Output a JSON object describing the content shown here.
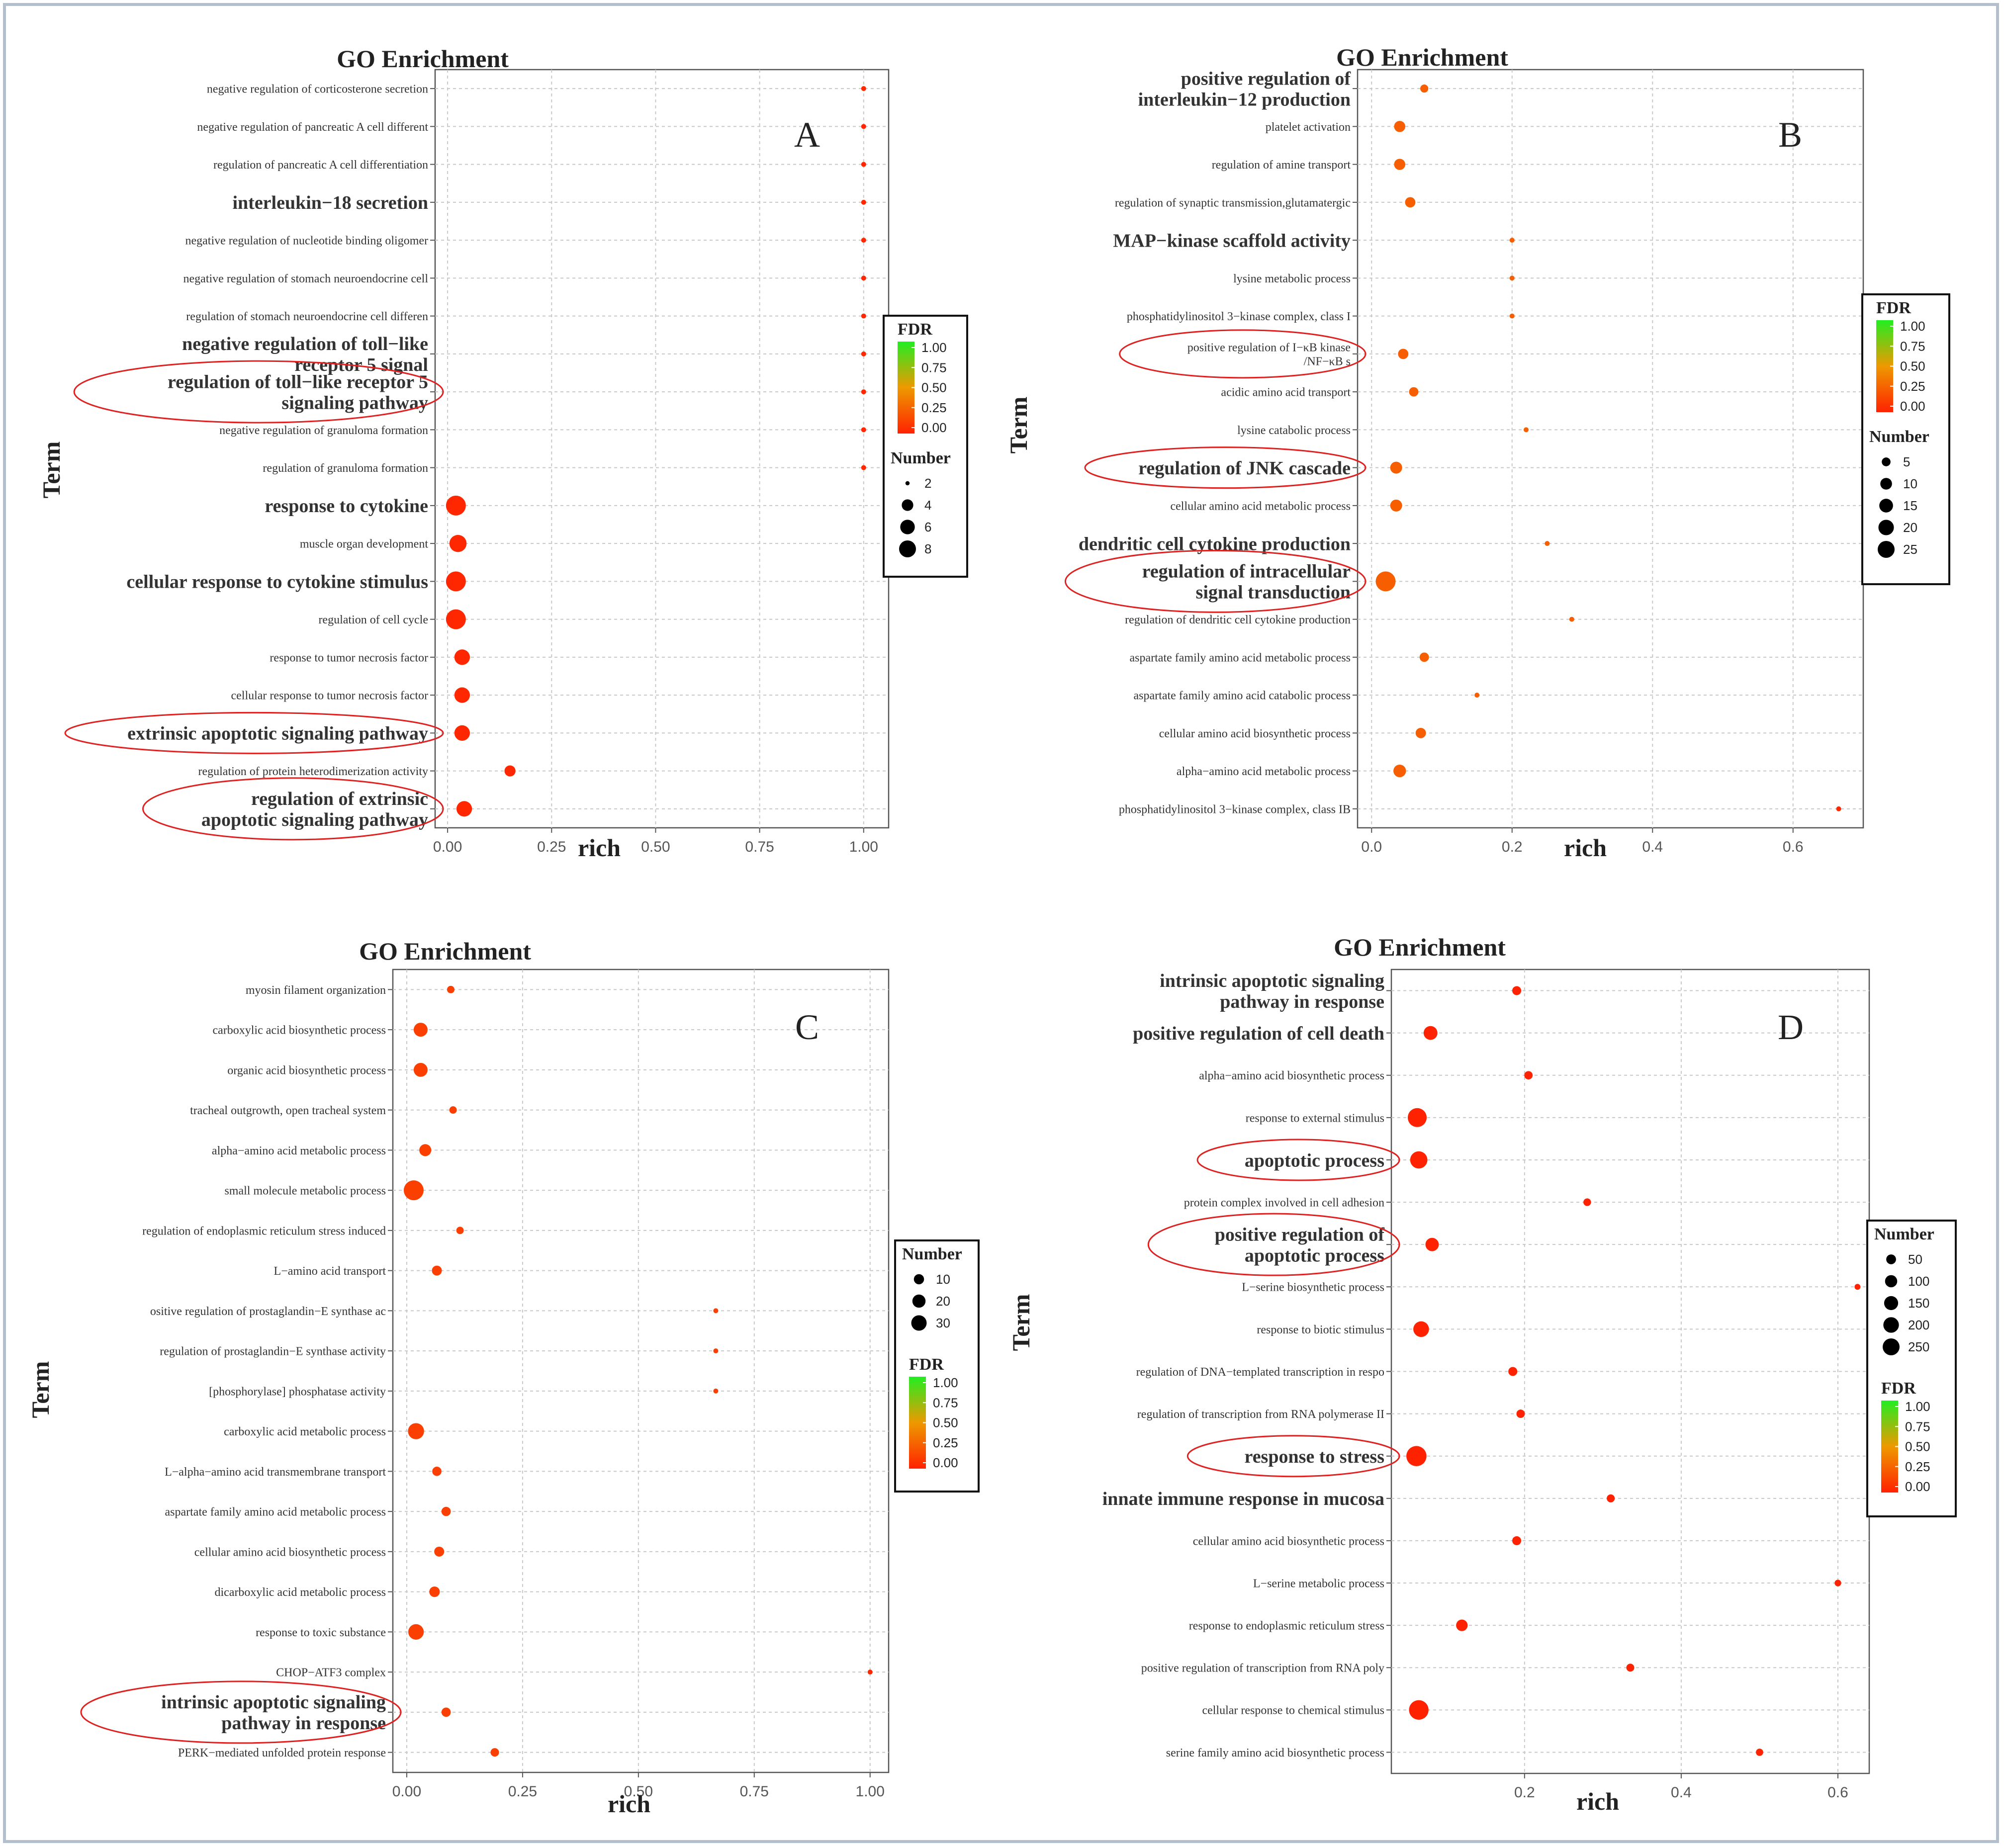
{
  "colors": {
    "low": "#ff2200",
    "mid": "#ee9900",
    "high": "#22ee22",
    "highlight": "#dd2222"
  },
  "chart_data": [
    {
      "id": "A",
      "type": "scatter",
      "title": "GO Enrichment",
      "panel_label": "A",
      "xlabel": "rich",
      "ylabel": "Term",
      "xlim": [
        -0.03,
        1.06
      ],
      "xticks": [
        0,
        0.25,
        0.5,
        0.75,
        1.0
      ],
      "xtick_labels": [
        "0.00",
        "0.25",
        "0.50",
        "0.75",
        "1.00"
      ],
      "grid": true,
      "legend_order": [
        "fdr",
        "size"
      ],
      "legend_fdr": {
        "title": "FDR",
        "labels": [
          "1.00",
          "0.75",
          "0.50",
          "0.25",
          "0.00"
        ]
      },
      "legend_size": {
        "title": "Number",
        "values": [
          2,
          4,
          6,
          8
        ]
      },
      "size_range": [
        2,
        8
      ],
      "terms": [
        {
          "label": [
            "negative regulation of corticosterone secretion"
          ],
          "rich": 1.0,
          "number": 1,
          "fdr": 0.02
        },
        {
          "label": [
            "negative regulation of pancreatic A cell different"
          ],
          "rich": 1.0,
          "number": 1,
          "fdr": 0.02
        },
        {
          "label": [
            "regulation of pancreatic A cell differentiation"
          ],
          "rich": 1.0,
          "number": 1,
          "fdr": 0.02
        },
        {
          "label": [
            "interleukin−18 secretion"
          ],
          "big": true,
          "rich": 1.0,
          "number": 1,
          "fdr": 0.02
        },
        {
          "label": [
            "negative regulation of nucleotide binding oligomer"
          ],
          "rich": 1.0,
          "number": 1,
          "fdr": 0.02
        },
        {
          "label": [
            "negative regulation of stomach neuroendocrine cell"
          ],
          "rich": 1.0,
          "number": 1,
          "fdr": 0.02
        },
        {
          "label": [
            "regulation of stomach neuroendocrine cell differen"
          ],
          "rich": 1.0,
          "number": 1,
          "fdr": 0.02
        },
        {
          "label": [
            "negative regulation of toll−like",
            "receptor 5 signal"
          ],
          "big": true,
          "rich": 1.0,
          "number": 1,
          "fdr": 0.02
        },
        {
          "label": [
            "regulation of toll−like receptor 5",
            "signaling pathway"
          ],
          "big": true,
          "highlight": true,
          "rich": 1.0,
          "number": 1,
          "fdr": 0.02
        },
        {
          "label": [
            "negative regulation of granuloma formation"
          ],
          "rich": 1.0,
          "number": 1,
          "fdr": 0.02
        },
        {
          "label": [
            "regulation of granuloma formation"
          ],
          "rich": 1.0,
          "number": 1,
          "fdr": 0.02
        },
        {
          "label": [
            "response to cytokine"
          ],
          "big": true,
          "rich": 0.02,
          "number": 8,
          "fdr": 0.02
        },
        {
          "label": [
            "muscle organ development"
          ],
          "rich": 0.025,
          "number": 6,
          "fdr": 0.02
        },
        {
          "label": [
            "cellular response to cytokine stimulus"
          ],
          "big": true,
          "rich": 0.02,
          "number": 8,
          "fdr": 0.02
        },
        {
          "label": [
            "regulation of cell cycle"
          ],
          "rich": 0.02,
          "number": 8,
          "fdr": 0.02
        },
        {
          "label": [
            "response to tumor necrosis factor"
          ],
          "rich": 0.035,
          "number": 5,
          "fdr": 0.02
        },
        {
          "label": [
            "cellular response to tumor necrosis factor"
          ],
          "rich": 0.035,
          "number": 5,
          "fdr": 0.02
        },
        {
          "label": [
            "extrinsic apoptotic signaling pathway"
          ],
          "big": true,
          "highlight": true,
          "rich": 0.035,
          "number": 5,
          "fdr": 0.02
        },
        {
          "label": [
            "regulation of protein heterodimerization activity"
          ],
          "rich": 0.15,
          "number": 3,
          "fdr": 0.02
        },
        {
          "label": [
            "regulation of extrinsic",
            "apoptotic signaling pathway"
          ],
          "big": true,
          "highlight": true,
          "rich": 0.04,
          "number": 5,
          "fdr": 0.02
        }
      ]
    },
    {
      "id": "B",
      "type": "scatter",
      "title": "GO Enrichment",
      "panel_label": "B",
      "xlabel": "rich",
      "ylabel": "Term",
      "xlim": [
        -0.02,
        0.7
      ],
      "xticks": [
        0,
        0.2,
        0.4,
        0.6
      ],
      "xtick_labels": [
        "0.0",
        "0.2",
        "0.4",
        "0.6"
      ],
      "grid": true,
      "legend_order": [
        "fdr",
        "size"
      ],
      "legend_fdr": {
        "title": "FDR",
        "labels": [
          "1.00",
          "0.75",
          "0.50",
          "0.25",
          "0.00"
        ]
      },
      "legend_size": {
        "title": "Number",
        "values": [
          5,
          10,
          15,
          20,
          25
        ]
      },
      "size_range": [
        2,
        25
      ],
      "terms": [
        {
          "label": [
            "positive regulation of",
            "interleukin−12  production"
          ],
          "big": true,
          "rich": 0.075,
          "number": 3,
          "fdr": 0.25
        },
        {
          "label": [
            "platelet activation"
          ],
          "rich": 0.04,
          "number": 6,
          "fdr": 0.25
        },
        {
          "label": [
            "regulation of amine transport"
          ],
          "rich": 0.04,
          "number": 6,
          "fdr": 0.25
        },
        {
          "label": [
            "regulation of synaptic transmission,glutamatergic"
          ],
          "rich": 0.055,
          "number": 5,
          "fdr": 0.25
        },
        {
          "label": [
            "MAP−kinase scaffold activity"
          ],
          "big": true,
          "rich": 0.2,
          "number": 1,
          "fdr": 0.25
        },
        {
          "label": [
            "lysine metabolic process"
          ],
          "rich": 0.2,
          "number": 1,
          "fdr": 0.25
        },
        {
          "label": [
            "phosphatidylinositol 3−kinase complex, class I"
          ],
          "rich": 0.2,
          "number": 1,
          "fdr": 0.25
        },
        {
          "label": [
            "positive regulation of I−κB kinase",
            "/NF−κB s"
          ],
          "highlight": true,
          "rich": 0.045,
          "number": 5,
          "fdr": 0.25
        },
        {
          "label": [
            "acidic amino acid transport"
          ],
          "rich": 0.06,
          "number": 4,
          "fdr": 0.25
        },
        {
          "label": [
            "lysine catabolic process"
          ],
          "rich": 0.22,
          "number": 1,
          "fdr": 0.25
        },
        {
          "label": [
            "regulation of JNK cascade"
          ],
          "big": true,
          "highlight": true,
          "rich": 0.035,
          "number": 7,
          "fdr": 0.25
        },
        {
          "label": [
            "cellular amino acid metabolic process"
          ],
          "rich": 0.035,
          "number": 7,
          "fdr": 0.25
        },
        {
          "label": [
            "dendritic cell cytokine production"
          ],
          "big": true,
          "rich": 0.25,
          "number": 1,
          "fdr": 0.25
        },
        {
          "label": [
            "regulation of intracellular",
            "signal transduction"
          ],
          "big": true,
          "highlight": true,
          "rich": 0.02,
          "number": 25,
          "fdr": 0.25
        },
        {
          "label": [
            "regulation of dendritic cell cytokine production"
          ],
          "rich": 0.285,
          "number": 1,
          "fdr": 0.25
        },
        {
          "label": [
            "aspartate family amino acid metabolic process"
          ],
          "rich": 0.075,
          "number": 4,
          "fdr": 0.25
        },
        {
          "label": [
            "aspartate family amino acid catabolic process"
          ],
          "rich": 0.15,
          "number": 2,
          "fdr": 0.25
        },
        {
          "label": [
            "cellular amino acid biosynthetic process"
          ],
          "rich": 0.07,
          "number": 5,
          "fdr": 0.25
        },
        {
          "label": [
            "alpha−amino acid metabolic process"
          ],
          "rich": 0.04,
          "number": 8,
          "fdr": 0.25
        },
        {
          "label": [
            "phosphatidylinositol 3−kinase complex, class IB"
          ],
          "rich": 0.665,
          "number": 1,
          "fdr": 0.02
        }
      ]
    },
    {
      "id": "C",
      "type": "scatter",
      "title": "GO Enrichment",
      "panel_label": "C",
      "xlabel": "rich",
      "ylabel": "Term",
      "xlim": [
        -0.03,
        1.04
      ],
      "xticks": [
        0,
        0.25,
        0.5,
        0.75,
        1.0
      ],
      "xtick_labels": [
        "0.00",
        "0.25",
        "0.50",
        "0.75",
        "1.00"
      ],
      "grid": true,
      "legend_order": [
        "size",
        "fdr"
      ],
      "legend_fdr": {
        "title": "FDR",
        "labels": [
          "1.00",
          "0.75",
          "0.50",
          "0.25",
          "0.00"
        ]
      },
      "legend_size": {
        "title": "Number",
        "values": [
          10,
          20,
          30
        ]
      },
      "size_range": [
        2,
        38
      ],
      "terms": [
        {
          "label": [
            "myosin filament organization"
          ],
          "rich": 0.095,
          "number": 3,
          "fdr": 0.12
        },
        {
          "label": [
            "carboxylic acid biosynthetic process"
          ],
          "rich": 0.03,
          "number": 15,
          "fdr": 0.12
        },
        {
          "label": [
            "organic acid biosynthetic process"
          ],
          "rich": 0.03,
          "number": 15,
          "fdr": 0.12
        },
        {
          "label": [
            "tracheal outgrowth, open tracheal system"
          ],
          "rich": 0.1,
          "number": 3,
          "fdr": 0.12
        },
        {
          "label": [
            "alpha−amino acid metabolic process"
          ],
          "rich": 0.04,
          "number": 10,
          "fdr": 0.12
        },
        {
          "label": [
            "small molecule metabolic process"
          ],
          "rich": 0.015,
          "number": 38,
          "fdr": 0.12
        },
        {
          "label": [
            "regulation of endoplasmic reticulum stress induced"
          ],
          "rich": 0.115,
          "number": 3,
          "fdr": 0.12
        },
        {
          "label": [
            "L−amino acid transport"
          ],
          "rich": 0.065,
          "number": 6,
          "fdr": 0.12
        },
        {
          "label": [
            "ositive regulation of prostaglandin−E synthase ac"
          ],
          "rich": 0.667,
          "number": 1,
          "fdr": 0.12
        },
        {
          "label": [
            "regulation of prostaglandin−E synthase activity"
          ],
          "rich": 0.667,
          "number": 1,
          "fdr": 0.12
        },
        {
          "label": [
            "[phosphorylase] phosphatase activity"
          ],
          "rich": 0.667,
          "number": 1,
          "fdr": 0.12
        },
        {
          "label": [
            "carboxylic acid metabolic process"
          ],
          "rich": 0.02,
          "number": 22,
          "fdr": 0.12
        },
        {
          "label": [
            "L−alpha−amino acid transmembrane transport"
          ],
          "rich": 0.065,
          "number": 5,
          "fdr": 0.12
        },
        {
          "label": [
            "aspartate family amino acid metabolic process"
          ],
          "rich": 0.085,
          "number": 5,
          "fdr": 0.12
        },
        {
          "label": [
            "cellular amino acid biosynthetic process"
          ],
          "rich": 0.07,
          "number": 6,
          "fdr": 0.12
        },
        {
          "label": [
            "dicarboxylic acid metabolic process"
          ],
          "rich": 0.06,
          "number": 7,
          "fdr": 0.12
        },
        {
          "label": [
            "response to toxic substance"
          ],
          "rich": 0.02,
          "number": 20,
          "fdr": 0.12
        },
        {
          "label": [
            "CHOP−ATF3 complex"
          ],
          "rich": 1.0,
          "number": 1,
          "fdr": 0.02
        },
        {
          "label": [
            "intrinsic apoptotic signaling",
            "pathway  in response"
          ],
          "big": true,
          "highlight": true,
          "rich": 0.085,
          "number": 5,
          "fdr": 0.12
        },
        {
          "label": [
            "PERK−mediated unfolded protein response"
          ],
          "rich": 0.19,
          "number": 4,
          "fdr": 0.12
        }
      ]
    },
    {
      "id": "D",
      "type": "scatter",
      "title": "GO Enrichment",
      "panel_label": "D",
      "xlabel": "rich",
      "ylabel": "Term",
      "xlim": [
        0.03,
        0.64
      ],
      "xticks": [
        0.2,
        0.4,
        0.6
      ],
      "xtick_labels": [
        "0.2",
        "0.4",
        "0.6"
      ],
      "grid": true,
      "legend_order": [
        "size",
        "fdr"
      ],
      "legend_fdr": {
        "title": "FDR",
        "labels": [
          "1.00",
          "0.75",
          "0.50",
          "0.25",
          "0.00"
        ]
      },
      "legend_size": {
        "title": "Number",
        "values": [
          50,
          100,
          150,
          200,
          250
        ]
      },
      "size_range": [
        2,
        250
      ],
      "terms": [
        {
          "label": [
            "intrinsic apoptotic signaling",
            "pathway in response"
          ],
          "big": true,
          "rich": 0.19,
          "number": 20,
          "fdr": 0.0
        },
        {
          "label": [
            "positive regulation of cell death"
          ],
          "big": true,
          "rich": 0.08,
          "number": 90,
          "fdr": 0.0
        },
        {
          "label": [
            "alpha−amino acid biosynthetic process"
          ],
          "rich": 0.205,
          "number": 15,
          "fdr": 0.0
        },
        {
          "label": [
            "response to external stimulus"
          ],
          "rich": 0.063,
          "number": 220,
          "fdr": 0.0
        },
        {
          "label": [
            "apoptotic process"
          ],
          "big": true,
          "highlight": true,
          "rich": 0.065,
          "number": 170,
          "fdr": 0.0
        },
        {
          "label": [
            "protein complex involved in cell adhesion"
          ],
          "rich": 0.28,
          "number": 10,
          "fdr": 0.0
        },
        {
          "label": [
            "positive regulation of",
            "apoptotic process"
          ],
          "big": true,
          "highlight": true,
          "rich": 0.082,
          "number": 80,
          "fdr": 0.0
        },
        {
          "label": [
            "L−serine biosynthetic process"
          ],
          "rich": 0.625,
          "number": 3,
          "fdr": 0.0
        },
        {
          "label": [
            "response to biotic stimulus"
          ],
          "rich": 0.068,
          "number": 130,
          "fdr": 0.0
        },
        {
          "label": [
            "regulation of DNA−templated transcription in respo"
          ],
          "rich": 0.185,
          "number": 20,
          "fdr": 0.0
        },
        {
          "label": [
            "regulation of transcription from RNA polymerase II"
          ],
          "rich": 0.195,
          "number": 15,
          "fdr": 0.0
        },
        {
          "label": [
            "response to stress"
          ],
          "big": true,
          "highlight": true,
          "rich": 0.062,
          "number": 260,
          "fdr": 0.0
        },
        {
          "label": [
            "innate immune response in mucosa"
          ],
          "big": true,
          "rich": 0.31,
          "number": 12,
          "fdr": 0.0
        },
        {
          "label": [
            "cellular amino acid biosynthetic process"
          ],
          "rich": 0.19,
          "number": 20,
          "fdr": 0.0
        },
        {
          "label": [
            "L−serine metabolic process"
          ],
          "rich": 0.6,
          "number": 5,
          "fdr": 0.0
        },
        {
          "label": [
            "response to endoplasmic reticulum stress"
          ],
          "rich": 0.12,
          "number": 50,
          "fdr": 0.0
        },
        {
          "label": [
            "positive regulation of transcription from RNA poly"
          ],
          "rich": 0.335,
          "number": 12,
          "fdr": 0.0
        },
        {
          "label": [
            "cellular response to chemical stimulus"
          ],
          "rich": 0.065,
          "number": 240,
          "fdr": 0.0
        },
        {
          "label": [
            "serine family amino acid biosynthetic process"
          ],
          "rich": 0.5,
          "number": 8,
          "fdr": 0.0
        }
      ]
    }
  ]
}
